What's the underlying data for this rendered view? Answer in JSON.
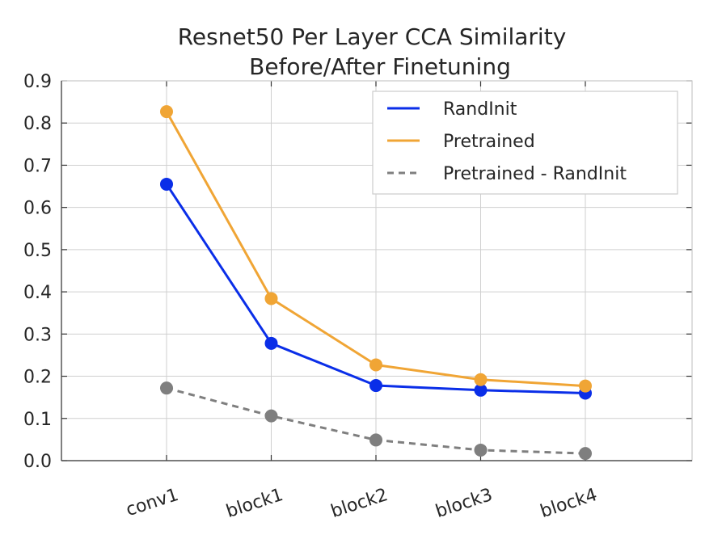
{
  "chart_data": {
    "type": "line",
    "title": "Resnet50 Per Layer CCA Similarity",
    "subtitle": "Before/After Finetuning",
    "xlabel": "",
    "ylabel": "",
    "categories": [
      "conv1",
      "block1",
      "block2",
      "block3",
      "block4"
    ],
    "ylim": [
      0.0,
      0.9
    ],
    "yticks": [
      "0.0",
      "0.1",
      "0.2",
      "0.3",
      "0.4",
      "0.5",
      "0.6",
      "0.7",
      "0.8",
      "0.9"
    ],
    "grid": true,
    "legend_position": "top-right",
    "series": [
      {
        "name": "RandInit",
        "color": "#0a2ee8",
        "dashed": false,
        "values": [
          0.655,
          0.278,
          0.178,
          0.167,
          0.16
        ]
      },
      {
        "name": "Pretrained",
        "color": "#f0a535",
        "dashed": false,
        "values": [
          0.827,
          0.384,
          0.227,
          0.192,
          0.177
        ]
      },
      {
        "name": "Pretrained - RandInit",
        "color": "#7f7f7f",
        "dashed": true,
        "values": [
          0.172,
          0.106,
          0.049,
          0.025,
          0.017
        ]
      }
    ]
  }
}
